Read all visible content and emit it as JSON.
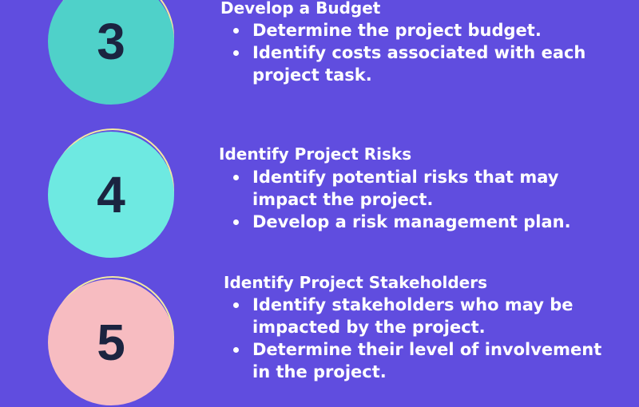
{
  "steps": [
    {
      "number": "3",
      "circle_color": "#4fd1c9",
      "title": "Develop a Budget",
      "bullets": [
        "Determine the project budget.",
        "Identify costs associated with each project task."
      ]
    },
    {
      "number": "4",
      "circle_color": "#6ee9e1",
      "title": "Identify Project Risks",
      "bullets": [
        "Identify potential risks that may impact the project.",
        "Develop a risk management plan."
      ]
    },
    {
      "number": "5",
      "circle_color": "#f7bcc1",
      "title": "Identify Project Stakeholders",
      "bullets": [
        "Identify stakeholders who may be impacted by the project.",
        "Determine their level of involvement in the project."
      ]
    }
  ]
}
